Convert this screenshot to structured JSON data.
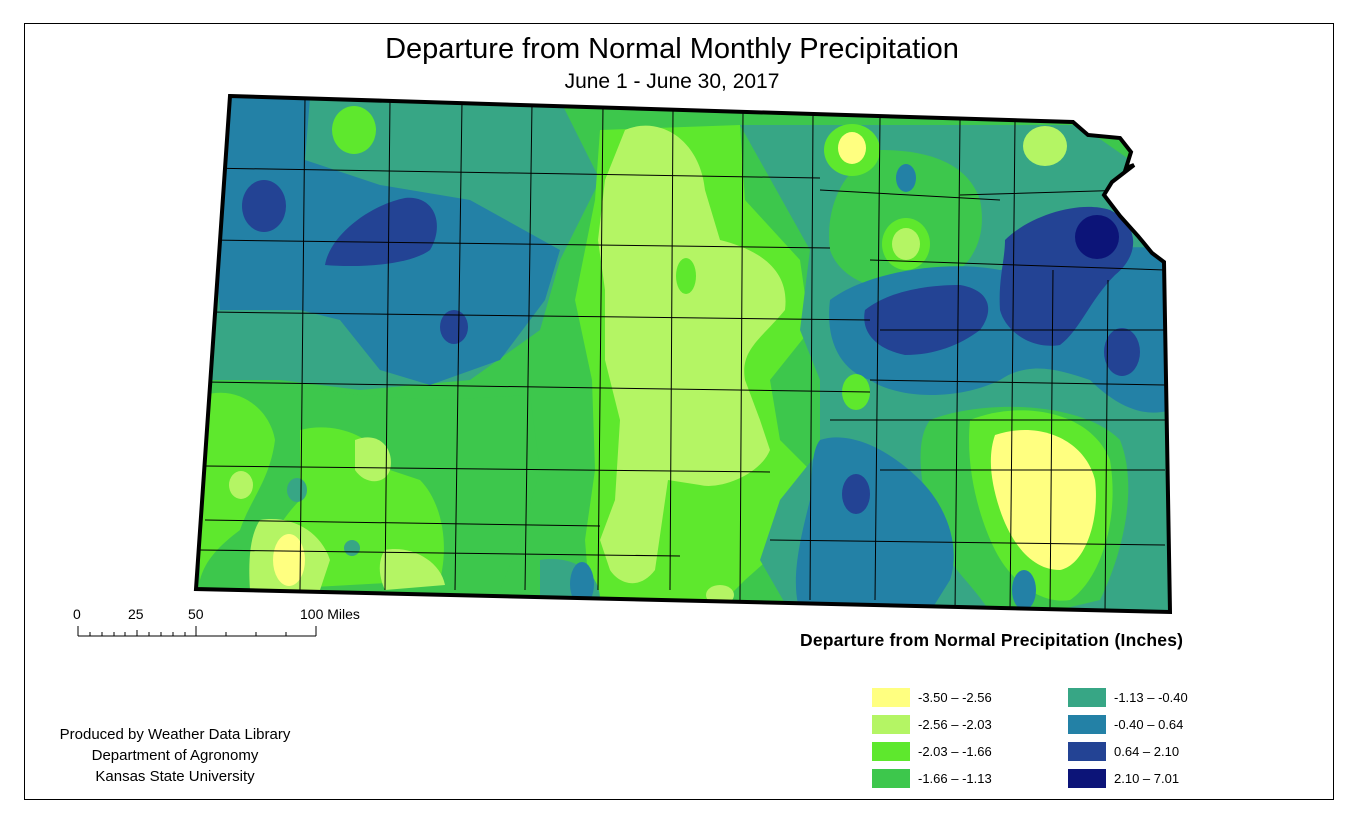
{
  "title": "Departure from Normal Monthly Precipitation",
  "subtitle": "June 1 - June 30, 2017",
  "scale_bar": {
    "labels": [
      "0",
      "25",
      "50",
      "100 Miles"
    ]
  },
  "credit": {
    "line1": "Produced by Weather Data Library",
    "line2": "Department of Agronomy",
    "line3": "Kansas State University"
  },
  "legend": {
    "title": "Departure from Normal Precipitation (Inches)",
    "classes": [
      {
        "label": "-3.50 – -2.56",
        "color": "#ffff80"
      },
      {
        "label": "-2.56 – -2.03",
        "color": "#b4f564"
      },
      {
        "label": "-2.03 – -1.66",
        "color": "#5ee82d"
      },
      {
        "label": "-1.66 – -1.13",
        "color": "#3dc74c"
      },
      {
        "label": "-1.13 – -0.40",
        "color": "#37a685"
      },
      {
        "label": "-0.40 – 0.64",
        "color": "#2381a6"
      },
      {
        "label": "0.64 – 2.10",
        "color": "#234394"
      },
      {
        "label": "2.10 – 7.01",
        "color": "#0c1478"
      }
    ]
  }
}
